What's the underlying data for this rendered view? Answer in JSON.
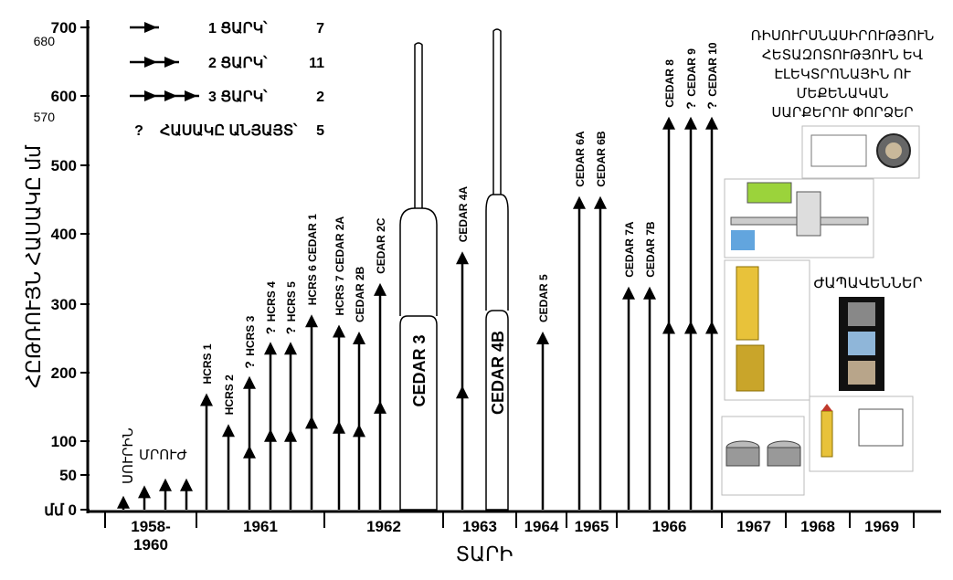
{
  "chart_data": {
    "type": "timeline",
    "ylabel": "ՀԸԹՌՈՒՅՆ ՀԱՍԱԿԸ   մմ",
    "xlabel": "ՏԱՐԻ",
    "y_ticks": [
      {
        "value": 0,
        "label": "մմ 0"
      },
      {
        "value": 50,
        "label": "50"
      },
      {
        "value": 100,
        "label": "100"
      },
      {
        "value": 200,
        "label": "200"
      },
      {
        "value": 300,
        "label": "300"
      },
      {
        "value": 400,
        "label": "400"
      },
      {
        "value": 500,
        "label": "500"
      },
      {
        "value": 600,
        "label": "600"
      },
      {
        "value": 700,
        "label": "700"
      }
    ],
    "y_extra_labels": [
      {
        "value": 680,
        "label": "680"
      },
      {
        "value": 570,
        "label": "570"
      }
    ],
    "year_groups": [
      {
        "label": "1958-\n1960"
      },
      {
        "label": "1961"
      },
      {
        "label": "1962"
      },
      {
        "label": "1963"
      },
      {
        "label": "1964"
      },
      {
        "label": "1965"
      },
      {
        "label": "1966"
      },
      {
        "label": "1967"
      },
      {
        "label": "1968"
      },
      {
        "label": "1969"
      }
    ],
    "group_labels": [
      "ՍՈՒՐԻՆ",
      "ՄՐՈՒԺ"
    ],
    "legend": [
      {
        "heads": 1,
        "text": "1 ՑԱՐԿ՝",
        "count": "7"
      },
      {
        "heads": 2,
        "text": "2 ՑԱՐԿ՝",
        "count": "11"
      },
      {
        "heads": 3,
        "text": "3 ՑԱՐԿ՝",
        "count": "2"
      },
      {
        "heads": 0,
        "mark": "?",
        "text": "ՀԱՍԱԿԸ ԱՆՅԱՅՏ՝",
        "count": "5"
      }
    ],
    "rockets": [
      {
        "label": "",
        "value": 20,
        "heads": 1
      },
      {
        "label": "",
        "value": 35,
        "heads": 1
      },
      {
        "label": "",
        "value": 45,
        "heads": 1
      },
      {
        "label": "",
        "value": 45,
        "heads": 1
      },
      {
        "label": "HCRS 1",
        "value": 170,
        "heads": 1
      },
      {
        "label": "HCRS 2",
        "value": 125,
        "heads": 1
      },
      {
        "label": "HCRS 3",
        "value": 195,
        "heads": 2,
        "unknown": true
      },
      {
        "label": "HCRS 4",
        "value": 245,
        "heads": 2,
        "unknown": true
      },
      {
        "label": "HCRS 5",
        "value": 245,
        "heads": 2,
        "unknown": true
      },
      {
        "label": "HCRS 6 CEDAR 1",
        "value": 285,
        "heads": 2
      },
      {
        "label": "HCRS 7 CEDAR 2A",
        "value": 270,
        "heads": 2
      },
      {
        "label": "CEDAR 2B",
        "value": 260,
        "heads": 2
      },
      {
        "label": "CEDAR 2C",
        "value": 330,
        "heads": 2
      },
      {
        "label": "CEDAR 4A",
        "value": 375,
        "heads": 2
      },
      {
        "label": "CEDAR 5",
        "value": 260,
        "heads": 1
      },
      {
        "label": "CEDAR 6A",
        "value": 455,
        "heads": 1
      },
      {
        "label": "CEDAR 6B",
        "value": 455,
        "heads": 1
      },
      {
        "label": "CEDAR 7A",
        "value": 325,
        "heads": 1
      },
      {
        "label": "CEDAR 7B",
        "value": 325,
        "heads": 1
      },
      {
        "label": "CEDAR 8",
        "value": 570,
        "heads": 2
      },
      {
        "label": "CEDAR 9",
        "value": 570,
        "heads": 2,
        "unknown": true
      },
      {
        "label": "CEDAR 10",
        "value": 570,
        "heads": 2,
        "unknown": true
      }
    ],
    "big_tubes": [
      {
        "label": "CEDAR 3",
        "value": 680
      },
      {
        "label": "CEDAR 4B",
        "value": 700
      }
    ],
    "side_title": "ՌԻՍՈՒՐՍՆԱՍԻՐՈՒԹՅՈՒՆ\nՀԵՏԱԶՈՏՈՒԹՅՈՒՆ ԵՎ\nԷԼԵԿՏՐՈՆԱՅԻՆ ՈՒ\nՄԵՔԵՆԱԿԱՆ\nՍԱՐՔԵՐՈՒ ՓՈՐՁԵՐ",
    "side_films_label": "ԺԱՊԱՎԵՆՆԵՐ"
  },
  "colors": {
    "ink": "#000000",
    "background": "#ffffff",
    "panel": "#f2f2f2",
    "accent_green": "#9bd33b",
    "accent_blue": "#3b8fd6"
  }
}
